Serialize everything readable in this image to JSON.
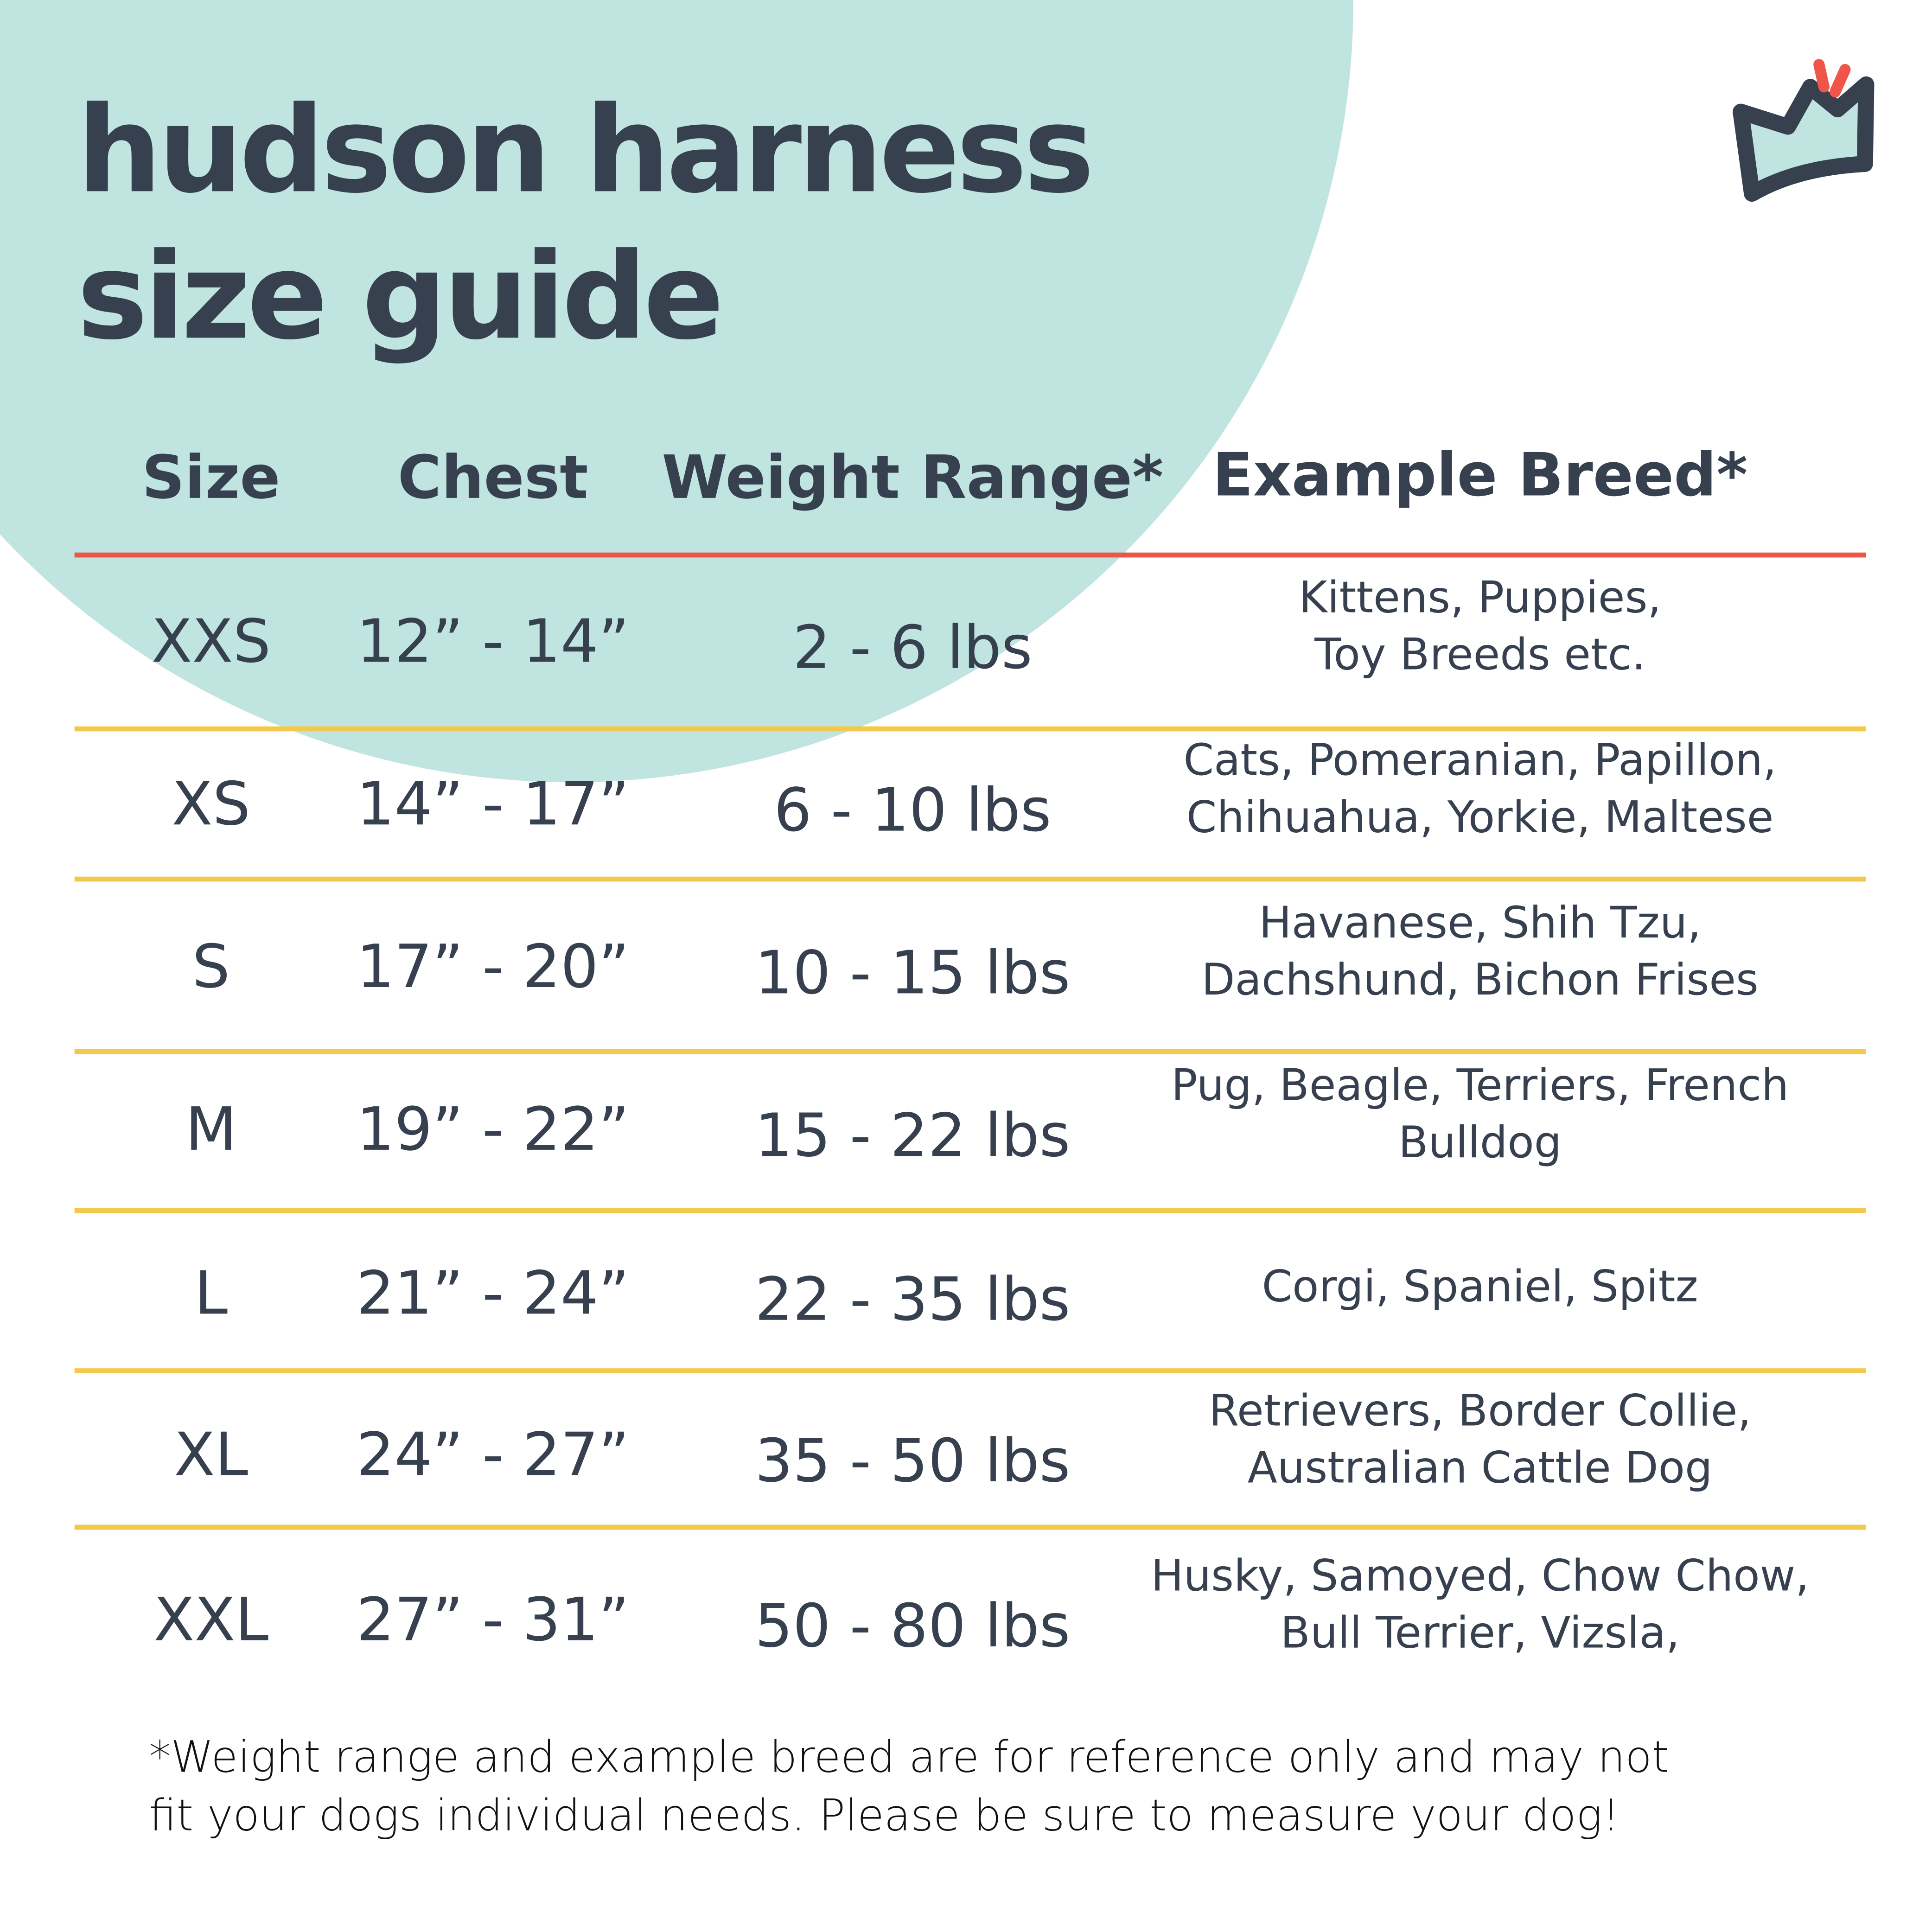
{
  "title": {
    "line1": "hudson harness",
    "line2": "size guide"
  },
  "logo": {
    "icon": "crown-icon",
    "colors": {
      "outline": "#36404f",
      "fill": "#c0e4e0",
      "accent": "#ef5548"
    }
  },
  "colors": {
    "text": "#36404f",
    "header_rule": "#e8574a",
    "row_rule": "#f2c94c",
    "circle": "#c0e4e0"
  },
  "table": {
    "headers": [
      "Size",
      "Chest",
      "Weight Range*",
      "Example Breed*"
    ],
    "rows": [
      {
        "size": "XXS",
        "chest": "12” - 14”",
        "weight": "2 - 6 lbs",
        "breed1": "Kittens, Puppies,",
        "breed2": "Toy Breeds etc."
      },
      {
        "size": "XS",
        "chest": "14” - 17”",
        "weight": "6 - 10 lbs",
        "breed1": "Cats, Pomeranian, Papillon,",
        "breed2": "Chihuahua, Yorkie, Maltese"
      },
      {
        "size": "S",
        "chest": "17” - 20”",
        "weight": "10 - 15 lbs",
        "breed1": "Havanese, Shih Tzu,",
        "breed2": "Dachshund, Bichon Frises"
      },
      {
        "size": "M",
        "chest": "19” - 22”",
        "weight": "15 - 22 lbs",
        "breed1": "Pug, Beagle, Terriers, French",
        "breed2": "Bulldog"
      },
      {
        "size": "L",
        "chest": "21” - 24”",
        "weight": "22 - 35 lbs",
        "breed1": "Corgi, Spaniel, Spitz",
        "breed2": ""
      },
      {
        "size": "XL",
        "chest": "24” - 27”",
        "weight": "35 - 50 lbs",
        "breed1": "Retrievers, Border Collie,",
        "breed2": "Australian Cattle Dog"
      },
      {
        "size": "XXL",
        "chest": "27” - 31”",
        "weight": "50 - 80 lbs",
        "breed1": "Husky, Samoyed, Chow Chow,",
        "breed2": "Bull Terrier, Vizsla,"
      }
    ]
  },
  "footnote": {
    "line1": "*Weight range and example breed are for reference only and may not",
    "line2": "fit your dogs individual needs. Please be sure to measure your dog!"
  }
}
